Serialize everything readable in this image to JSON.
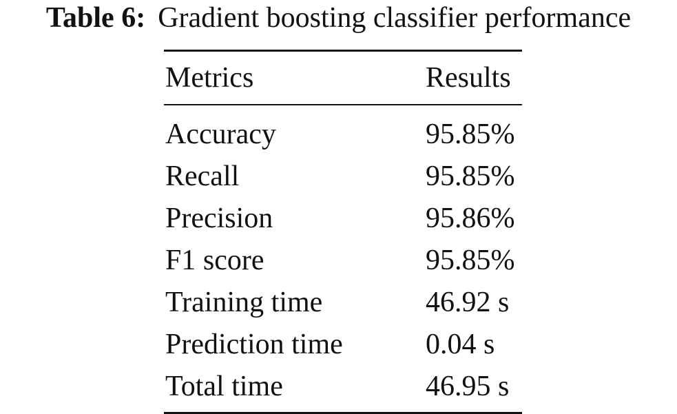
{
  "caption": {
    "label": "Table 6:",
    "text": "Gradient boosting classifier performance"
  },
  "table": {
    "headers": [
      "Metrics",
      "Results"
    ],
    "rows": [
      [
        "Accuracy",
        "95.85%"
      ],
      [
        "Recall",
        "95.85%"
      ],
      [
        "Precision",
        "95.86%"
      ],
      [
        "F1 score",
        "95.85%"
      ],
      [
        "Training time",
        "46.92 s"
      ],
      [
        "Prediction time",
        "0.04 s"
      ],
      [
        "Total time",
        "46.95 s"
      ]
    ]
  }
}
